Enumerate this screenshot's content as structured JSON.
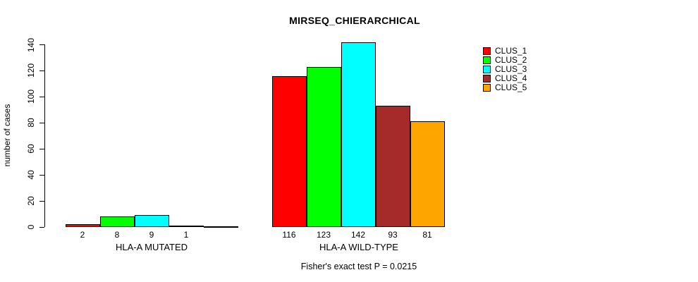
{
  "title": "MIRSEQ_CHIERARCHICAL",
  "chart_data": {
    "type": "bar",
    "grouped": true,
    "title": "MIRSEQ_CHIERARCHICAL",
    "xlabel": "",
    "ylabel": "number of cases",
    "ylim": [
      0,
      140
    ],
    "yticks": [
      0,
      20,
      40,
      60,
      80,
      100,
      120,
      140
    ],
    "categories": [
      "HLA-A MUTATED",
      "HLA-A WILD-TYPE"
    ],
    "series": [
      {
        "name": "CLUS_1",
        "color": "#FF0000",
        "values": [
          2,
          116
        ]
      },
      {
        "name": "CLUS_2",
        "color": "#00FF00",
        "values": [
          8,
          123
        ]
      },
      {
        "name": "CLUS_3",
        "color": "#00FFFF",
        "values": [
          9,
          142
        ]
      },
      {
        "name": "CLUS_4",
        "color": "#A52A2A",
        "values": [
          1,
          93
        ]
      },
      {
        "name": "CLUS_5",
        "color": "#FFA500",
        "values": [
          0,
          81
        ]
      }
    ],
    "bar_value_labels": [
      [
        "2",
        "8",
        "9",
        "1",
        ""
      ],
      [
        "116",
        "123",
        "142",
        "93",
        "81"
      ]
    ],
    "legend_position": "right-inside",
    "legend": [
      "CLUS_1",
      "CLUS_2",
      "CLUS_3",
      "CLUS_4",
      "CLUS_5"
    ],
    "annotation": "Fisher's exact test P = 0.0215",
    "grid": false
  }
}
